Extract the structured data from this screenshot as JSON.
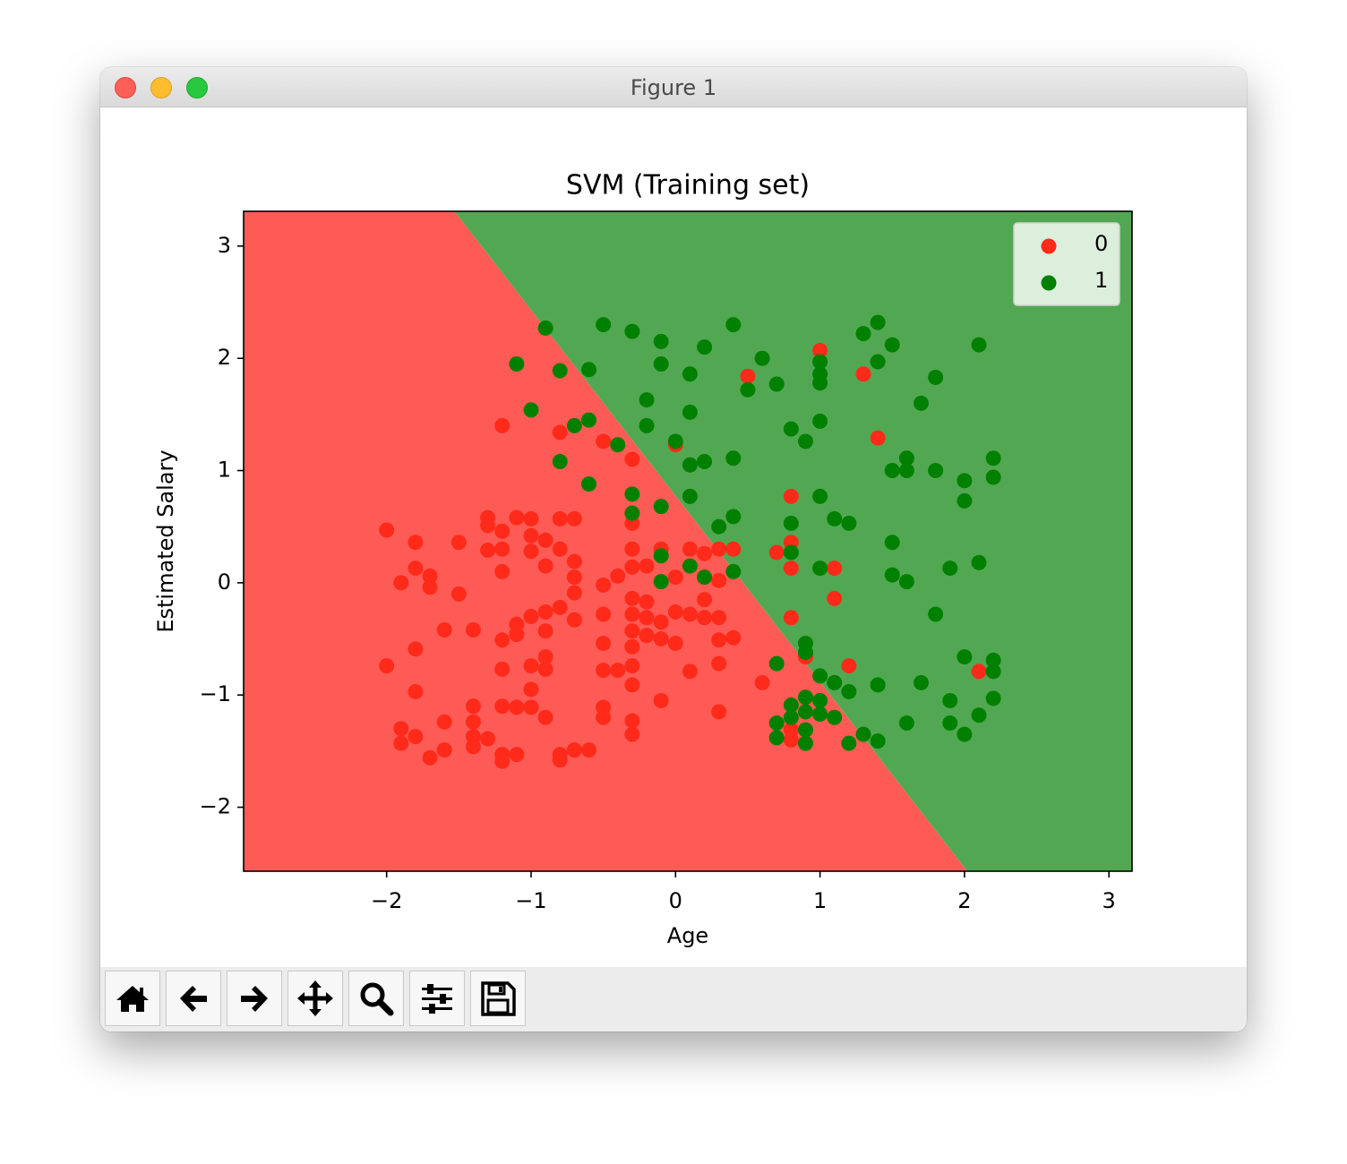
{
  "window": {
    "title": "Figure 1"
  },
  "chart_data": {
    "type": "scatter",
    "title": "SVM (Training set)",
    "x_label": "Age",
    "y_label": "Estimated Salary",
    "xlim": [
      -2.99,
      3.16
    ],
    "ylim": [
      -2.57,
      3.31
    ],
    "xticks": [
      {
        "value": -2,
        "label": "−2"
      },
      {
        "value": -1,
        "label": "−1"
      },
      0,
      1,
      2,
      3
    ],
    "yticks": [
      {
        "value": -2,
        "label": "−2"
      },
      {
        "value": -1,
        "label": "−1"
      },
      0,
      1,
      2,
      3
    ],
    "legend": "upper right",
    "grid": false,
    "regions": {
      "colors": [
        "#ff5b56",
        "#52a852"
      ],
      "boundary": {
        "x": [
          -1.53,
          2.02
        ],
        "y": [
          3.31,
          -2.57
        ]
      }
    },
    "series": [
      {
        "name": "0",
        "color": "#ff2a1a",
        "x": [
          -2.0,
          -2.0,
          -1.9,
          -1.9,
          -1.9,
          -1.8,
          -1.8,
          -1.8,
          -1.8,
          -1.8,
          -1.7,
          -1.7,
          -1.7,
          -1.6,
          -1.6,
          -1.6,
          -1.5,
          -1.5,
          -1.4,
          -1.4,
          -1.4,
          -1.4,
          -1.4,
          -1.3,
          -1.3,
          -1.3,
          -1.3,
          -1.2,
          -1.2,
          -1.2,
          -1.2,
          -1.2,
          -1.2,
          -1.2,
          -1.2,
          -1.2,
          -1.1,
          -1.1,
          -1.1,
          -1.1,
          -1.1,
          -1.0,
          -1.0,
          -1.0,
          -1.0,
          -1.0,
          -1.0,
          -1.0,
          -0.9,
          -0.9,
          -0.9,
          -0.9,
          -0.9,
          -0.9,
          -0.9,
          -0.8,
          -0.8,
          -0.8,
          -0.8,
          -0.8,
          -0.8,
          -0.7,
          -0.7,
          -0.7,
          -0.7,
          -0.7,
          -0.7,
          -0.6,
          -0.5,
          -0.5,
          -0.5,
          -0.5,
          -0.5,
          -0.5,
          -0.5,
          -0.4,
          -0.4,
          -0.3,
          -0.3,
          -0.3,
          -0.3,
          -0.3,
          -0.3,
          -0.3,
          -0.3,
          -0.3,
          -0.3,
          -0.3,
          -0.3,
          -0.2,
          -0.2,
          -0.2,
          -0.2,
          -0.1,
          -0.1,
          -0.1,
          -0.1,
          0.0,
          0.0,
          0.0,
          0.0,
          0.1,
          0.1,
          0.1,
          0.2,
          0.2,
          0.2,
          0.3,
          0.3,
          0.3,
          0.3,
          0.3,
          0.3,
          0.4,
          0.4,
          0.5,
          0.6,
          0.7,
          0.8,
          0.8,
          0.8,
          0.8,
          0.9,
          1.0,
          1.1,
          1.1,
          1.2,
          1.3,
          1.4,
          2.1,
          0.8,
          0.8
        ],
        "values": [
          0.47,
          -0.74,
          0.0,
          -1.3,
          -1.43,
          0.36,
          0.13,
          -0.59,
          -0.97,
          -1.37,
          0.06,
          -0.04,
          -1.56,
          -0.42,
          -1.24,
          -1.49,
          0.36,
          -0.1,
          -0.42,
          -1.1,
          -1.24,
          -1.37,
          -1.46,
          0.58,
          0.51,
          0.29,
          -1.39,
          1.4,
          0.46,
          0.3,
          0.1,
          -0.51,
          -0.77,
          -1.1,
          -1.53,
          -1.59,
          0.58,
          -0.37,
          -0.46,
          -1.11,
          -1.53,
          0.57,
          0.42,
          0.28,
          -0.3,
          -0.74,
          -0.95,
          -1.11,
          0.38,
          0.15,
          -0.26,
          -0.43,
          -0.66,
          -0.77,
          -1.2,
          1.34,
          0.57,
          0.3,
          -0.22,
          -1.53,
          -1.58,
          0.57,
          0.19,
          0.05,
          -0.09,
          -0.33,
          -1.49,
          -1.49,
          1.26,
          -0.02,
          -0.28,
          -0.54,
          -0.78,
          -1.11,
          -1.2,
          0.06,
          -0.78,
          1.1,
          0.53,
          0.3,
          0.14,
          -0.14,
          -0.28,
          -0.43,
          -0.57,
          -0.74,
          -0.91,
          -1.23,
          -1.35,
          0.15,
          -0.17,
          -0.31,
          -0.47,
          0.3,
          -0.35,
          -0.5,
          -1.05,
          1.23,
          0.05,
          -0.26,
          -0.54,
          0.3,
          -0.28,
          -0.79,
          0.26,
          -0.15,
          -0.31,
          0.3,
          0.02,
          -0.31,
          -0.51,
          -0.72,
          -1.15,
          0.3,
          -0.49,
          1.84,
          -0.89,
          0.27,
          0.77,
          0.36,
          0.13,
          -0.31,
          -0.66,
          2.07,
          0.13,
          -0.14,
          -0.74,
          1.86,
          1.29,
          -0.79,
          -1.31,
          -1.4
        ]
      },
      {
        "name": "1",
        "color": "#008000",
        "x": [
          -0.9,
          -1.1,
          -1.0,
          -0.8,
          -0.8,
          -0.7,
          -0.6,
          -0.6,
          -0.6,
          -0.5,
          -0.4,
          -0.3,
          -0.3,
          -0.3,
          -0.2,
          -0.2,
          -0.1,
          -0.1,
          -0.1,
          -0.1,
          -0.1,
          0.0,
          0.1,
          0.1,
          0.1,
          0.1,
          0.1,
          0.2,
          0.2,
          0.2,
          0.3,
          0.4,
          0.4,
          0.4,
          0.4,
          0.5,
          0.6,
          0.7,
          0.7,
          0.7,
          0.7,
          0.8,
          0.8,
          0.8,
          0.8,
          0.8,
          0.9,
          0.9,
          0.9,
          0.9,
          0.9,
          0.9,
          0.9,
          1.0,
          1.0,
          1.0,
          1.0,
          1.0,
          1.0,
          1.0,
          1.0,
          1.0,
          1.1,
          1.1,
          1.1,
          1.2,
          1.2,
          1.2,
          1.3,
          1.3,
          1.4,
          1.4,
          1.4,
          1.4,
          1.5,
          1.5,
          1.5,
          1.5,
          1.6,
          1.6,
          1.6,
          1.6,
          1.7,
          1.7,
          1.8,
          1.8,
          1.8,
          1.9,
          1.9,
          1.9,
          2.0,
          2.0,
          2.0,
          2.0,
          2.1,
          2.1,
          2.1,
          2.2,
          2.2,
          2.2,
          2.2,
          2.2
        ],
        "values": [
          2.27,
          1.95,
          1.54,
          1.89,
          1.08,
          1.4,
          1.9,
          1.45,
          0.88,
          2.3,
          1.23,
          2.24,
          0.79,
          0.62,
          1.63,
          1.4,
          2.15,
          1.95,
          0.68,
          0.24,
          0.01,
          1.26,
          1.86,
          1.52,
          1.05,
          0.77,
          0.15,
          2.1,
          1.08,
          0.05,
          0.5,
          2.3,
          1.11,
          0.59,
          0.1,
          1.72,
          2.0,
          1.77,
          -0.72,
          -1.25,
          -1.38,
          1.37,
          0.53,
          0.27,
          -1.09,
          -1.2,
          1.26,
          -0.54,
          -0.62,
          -1.02,
          -1.15,
          -1.31,
          -1.43,
          1.97,
          1.86,
          1.78,
          1.44,
          0.77,
          0.13,
          -0.83,
          -1.05,
          -1.17,
          0.57,
          -0.89,
          -1.2,
          0.53,
          -0.97,
          -1.43,
          2.22,
          -1.35,
          2.32,
          1.97,
          -0.91,
          -1.41,
          2.12,
          1.0,
          0.36,
          0.07,
          1.11,
          1.0,
          0.01,
          -1.25,
          1.6,
          -0.89,
          1.83,
          1.0,
          -0.28,
          0.13,
          -1.05,
          -1.25,
          0.91,
          0.73,
          -0.66,
          -1.35,
          2.12,
          0.18,
          -1.18,
          1.11,
          0.94,
          -0.69,
          -0.79,
          -1.03
        ]
      }
    ]
  }
}
